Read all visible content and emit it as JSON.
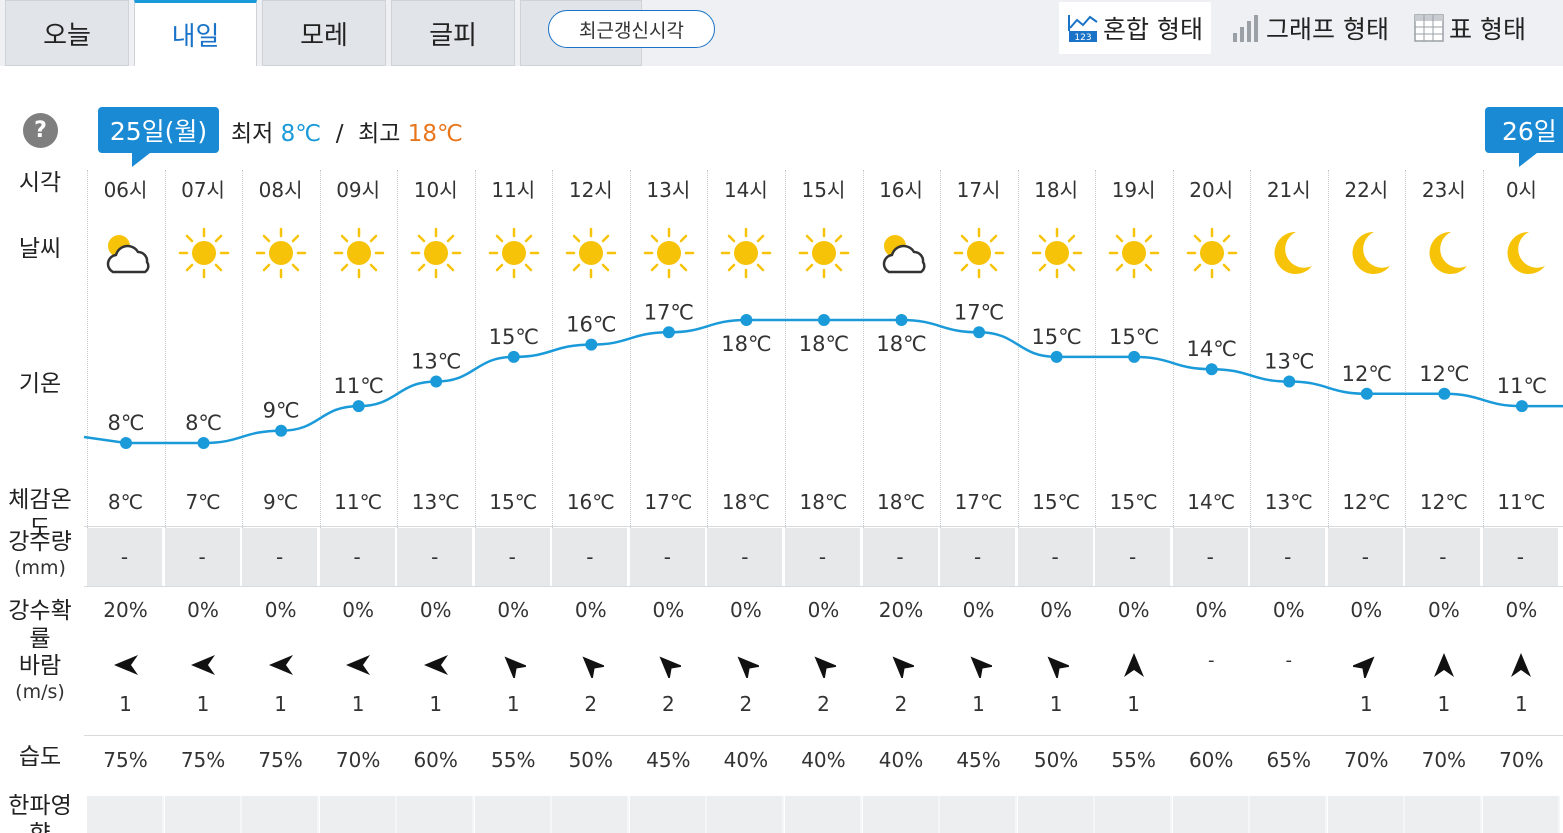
{
  "tabs": [
    {
      "label": "오늘",
      "active": false
    },
    {
      "label": "내일",
      "active": true
    },
    {
      "label": "모레",
      "active": false
    },
    {
      "label": "글피",
      "active": false
    }
  ],
  "refresh_label": "최근갱신시각",
  "view_modes": [
    {
      "label": "혼합 형태",
      "icon": "mixed-chart-icon",
      "active": true
    },
    {
      "label": "그래프 형태",
      "icon": "bar-graph-icon",
      "active": false
    },
    {
      "label": "표 형태",
      "icon": "table-grid-icon",
      "active": false
    }
  ],
  "date_badge": "25일(월)",
  "next_date_badge": "26일",
  "min_label": "최저",
  "min_value": "8℃",
  "max_label": "최고",
  "max_value": "18℃",
  "row_labels": {
    "time": "시각",
    "weather": "날씨",
    "temp": "기온",
    "feel": "체감온도",
    "rain": "강수량",
    "rain_unit": "(mm)",
    "prob": "강수확률",
    "wind": "바람",
    "wind_unit": "(m/s)",
    "humidity": "습도",
    "cold": "한파영향"
  },
  "colors": {
    "accent": "#1a8ad4",
    "line": "#1a9ad9",
    "min": "#1a9ad9",
    "max": "#e8761c",
    "sun": "#f7c308"
  },
  "hours": [
    {
      "time": "06시",
      "icon": "partly-cloudy-icon",
      "temp": 8,
      "temp_label": "8℃",
      "feel": "8℃",
      "rain": "-",
      "prob": "20%",
      "wind_dir": "west",
      "wind_spd": "1",
      "humidity": "75%"
    },
    {
      "time": "07시",
      "icon": "sun-icon",
      "temp": 8,
      "temp_label": "8℃",
      "feel": "7℃",
      "rain": "-",
      "prob": "0%",
      "wind_dir": "west",
      "wind_spd": "1",
      "humidity": "75%"
    },
    {
      "time": "08시",
      "icon": "sun-icon",
      "temp": 9,
      "temp_label": "9℃",
      "feel": "9℃",
      "rain": "-",
      "prob": "0%",
      "wind_dir": "west",
      "wind_spd": "1",
      "humidity": "75%"
    },
    {
      "time": "09시",
      "icon": "sun-icon",
      "temp": 11,
      "temp_label": "11℃",
      "feel": "11℃",
      "rain": "-",
      "prob": "0%",
      "wind_dir": "west",
      "wind_spd": "1",
      "humidity": "70%"
    },
    {
      "time": "10시",
      "icon": "sun-icon",
      "temp": 13,
      "temp_label": "13℃",
      "feel": "13℃",
      "rain": "-",
      "prob": "0%",
      "wind_dir": "west",
      "wind_spd": "1",
      "humidity": "60%"
    },
    {
      "time": "11시",
      "icon": "sun-icon",
      "temp": 15,
      "temp_label": "15℃",
      "feel": "15℃",
      "rain": "-",
      "prob": "0%",
      "wind_dir": "northwest",
      "wind_spd": "1",
      "humidity": "55%"
    },
    {
      "time": "12시",
      "icon": "sun-icon",
      "temp": 16,
      "temp_label": "16℃",
      "feel": "16℃",
      "rain": "-",
      "prob": "0%",
      "wind_dir": "northwest",
      "wind_spd": "2",
      "humidity": "50%"
    },
    {
      "time": "13시",
      "icon": "sun-icon",
      "temp": 17,
      "temp_label": "17℃",
      "feel": "17℃",
      "rain": "-",
      "prob": "0%",
      "wind_dir": "northwest",
      "wind_spd": "2",
      "humidity": "45%"
    },
    {
      "time": "14시",
      "icon": "sun-icon",
      "temp": 18,
      "temp_label": "18℃",
      "feel": "18℃",
      "rain": "-",
      "prob": "0%",
      "wind_dir": "northwest",
      "wind_spd": "2",
      "humidity": "40%"
    },
    {
      "time": "15시",
      "icon": "sun-icon",
      "temp": 18,
      "temp_label": "18℃",
      "feel": "18℃",
      "rain": "-",
      "prob": "0%",
      "wind_dir": "northwest",
      "wind_spd": "2",
      "humidity": "40%"
    },
    {
      "time": "16시",
      "icon": "partly-cloudy-icon",
      "temp": 18,
      "temp_label": "18℃",
      "feel": "18℃",
      "rain": "-",
      "prob": "20%",
      "wind_dir": "northwest",
      "wind_spd": "2",
      "humidity": "40%"
    },
    {
      "time": "17시",
      "icon": "sun-icon",
      "temp": 17,
      "temp_label": "17℃",
      "feel": "17℃",
      "rain": "-",
      "prob": "0%",
      "wind_dir": "northwest",
      "wind_spd": "1",
      "humidity": "45%"
    },
    {
      "time": "18시",
      "icon": "sun-icon",
      "temp": 15,
      "temp_label": "15℃",
      "feel": "15℃",
      "rain": "-",
      "prob": "0%",
      "wind_dir": "northwest",
      "wind_spd": "1",
      "humidity": "50%"
    },
    {
      "time": "19시",
      "icon": "sun-icon",
      "temp": 15,
      "temp_label": "15℃",
      "feel": "15℃",
      "rain": "-",
      "prob": "0%",
      "wind_dir": "north",
      "wind_spd": "1",
      "humidity": "55%"
    },
    {
      "time": "20시",
      "icon": "sun-icon",
      "temp": 14,
      "temp_label": "14℃",
      "feel": "14℃",
      "rain": "-",
      "prob": "0%",
      "wind_dir": "none",
      "wind_spd": "-",
      "humidity": "60%"
    },
    {
      "time": "21시",
      "icon": "moon-icon",
      "temp": 13,
      "temp_label": "13℃",
      "feel": "13℃",
      "rain": "-",
      "prob": "0%",
      "wind_dir": "none",
      "wind_spd": "-",
      "humidity": "65%"
    },
    {
      "time": "22시",
      "icon": "moon-icon",
      "temp": 12,
      "temp_label": "12℃",
      "feel": "12℃",
      "rain": "-",
      "prob": "0%",
      "wind_dir": "northeast",
      "wind_spd": "1",
      "humidity": "70%"
    },
    {
      "time": "23시",
      "icon": "moon-icon",
      "temp": 12,
      "temp_label": "12℃",
      "feel": "12℃",
      "rain": "-",
      "prob": "0%",
      "wind_dir": "north",
      "wind_spd": "1",
      "humidity": "70%"
    },
    {
      "time": "0시",
      "icon": "moon-icon",
      "temp": 11,
      "temp_label": "11℃",
      "feel": "11℃",
      "rain": "-",
      "prob": "0%",
      "wind_dir": "north",
      "wind_spd": "1",
      "humidity": "70%"
    }
  ]
}
